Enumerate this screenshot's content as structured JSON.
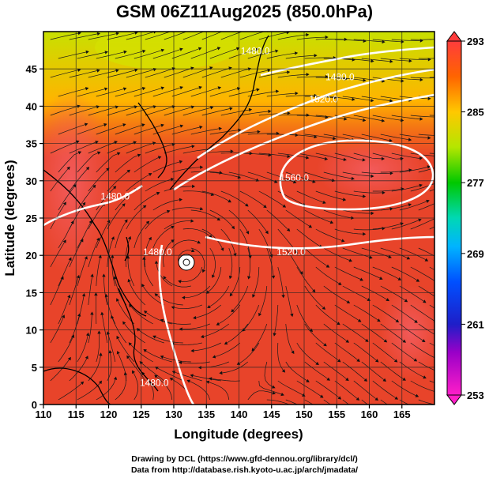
{
  "title": "GSM 06Z11Aug2025 (850.0hPa)",
  "map": {
    "type": "weather-map",
    "variable_scale": "temperature shading with streamlines and geopotential height contours",
    "xlabel": "Longitude (degrees)",
    "ylabel": "Latitude  (degrees)",
    "xlim": [
      110,
      170
    ],
    "ylim": [
      0,
      50
    ],
    "xticks": [
      "110",
      "115",
      "120",
      "125",
      "130",
      "135",
      "140",
      "145",
      "150",
      "155",
      "160",
      "165"
    ],
    "yticks": [
      "0",
      "5",
      "10",
      "15",
      "20",
      "25",
      "30",
      "35",
      "40",
      "45"
    ],
    "grid": true,
    "colorbar": {
      "ticks": [
        "253",
        "261",
        "269",
        "277",
        "285",
        "293"
      ],
      "min": 253,
      "max": 293,
      "placement": "right"
    },
    "contour_labels": [
      {
        "text": "1480.0",
        "lon": 127,
        "lat": 2.5
      },
      {
        "text": "1480.0",
        "lon": 121,
        "lat": 27.5
      },
      {
        "text": "1480.0",
        "lon": 127.5,
        "lat": 20
      },
      {
        "text": "1480.0",
        "lon": 142.5,
        "lat": 47
      },
      {
        "text": "1480.0",
        "lon": 155.5,
        "lat": 43.5
      },
      {
        "text": "1520.0",
        "lon": 153,
        "lat": 40.5
      },
      {
        "text": "1560.0",
        "lon": 148.5,
        "lat": 30
      },
      {
        "text": "1520.0",
        "lon": 148,
        "lat": 20
      }
    ],
    "colors": {
      "warm": "#e8442a",
      "hot": "#f25550",
      "mid": "#ff8c00",
      "cool": "#c8dc00",
      "contour": "#ffffff",
      "coast": "#000000"
    }
  },
  "credits": {
    "line1": "Drawing by DCL (https://www.gfd-dennou.org/library/dcl/)",
    "line2": "Data from http://database.rish.kyoto-u.ac.jp/arch/jmadata/"
  }
}
